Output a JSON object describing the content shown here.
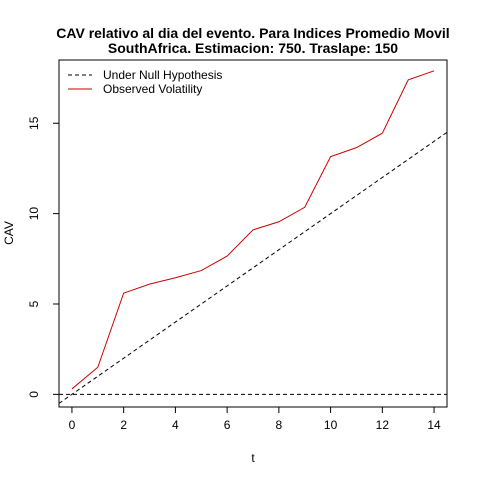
{
  "chart_data": {
    "type": "line",
    "title_line1": "CAV relativo al dia del evento. Para Indices Promedio Movil",
    "title_line2": "SouthAfrica. Estimacion: 750. Traslape: 150",
    "xlabel": "t",
    "ylabel": "CAV",
    "xlim": [
      -0.5,
      14.5
    ],
    "ylim": [
      -0.7,
      18.5
    ],
    "x_ticks": [
      0,
      2,
      4,
      6,
      8,
      10,
      12,
      14
    ],
    "y_ticks": [
      0,
      5,
      10,
      15
    ],
    "legend_position": "top-left",
    "series": [
      {
        "name": "Under Null Hypothesis",
        "color": "#000000",
        "style": "dashed",
        "x": [
          -0.5,
          14.5
        ],
        "y": [
          -0.5,
          14.5
        ]
      },
      {
        "name": "Observed Volatility",
        "color": "#cc0000",
        "style": "solid",
        "x": [
          0,
          1,
          2,
          3,
          4,
          5,
          6,
          7,
          8,
          9,
          10,
          11,
          12,
          13,
          14
        ],
        "y": [
          0.3,
          1.5,
          5.6,
          6.1,
          6.45,
          6.85,
          7.65,
          9.1,
          9.55,
          10.35,
          13.15,
          13.65,
          14.45,
          17.4,
          17.9
        ]
      }
    ],
    "reference_lines": [
      {
        "orientation": "horizontal",
        "value": 0,
        "color": "#000000",
        "style": "dashed"
      }
    ]
  }
}
